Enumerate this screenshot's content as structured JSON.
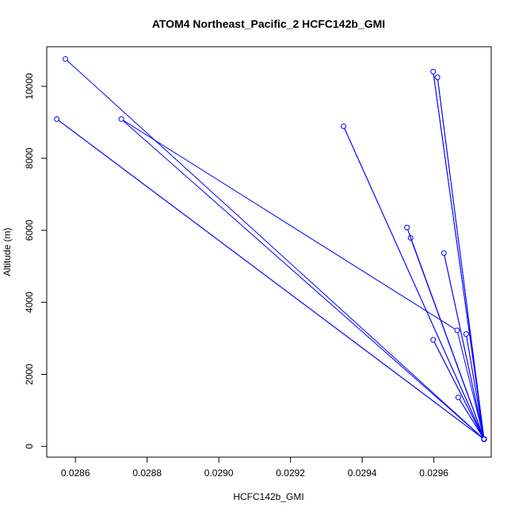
{
  "chart_data": {
    "type": "line",
    "title": "ATOM4 Northeast_Pacific_2 HCFC142b_GMI",
    "xlabel": "HCFC142b_GMI",
    "ylabel": "Altitude (m)",
    "xlim": [
      0.02852,
      0.02976
    ],
    "ylim": [
      -300,
      11100
    ],
    "x_ticks": [
      0.0286,
      0.0288,
      0.029,
      0.0292,
      0.0294,
      0.0296
    ],
    "x_tick_labels": [
      "0.0286",
      "0.0288",
      "0.0290",
      "0.0292",
      "0.0294",
      "0.0296"
    ],
    "y_ticks": [
      0,
      2000,
      4000,
      6000,
      8000,
      10000
    ],
    "y_tick_labels": [
      "0",
      "2000",
      "4000",
      "6000",
      "8000",
      "10000"
    ],
    "color": "#0000ff",
    "marker": "open-circle",
    "series": [
      {
        "points": [
          {
            "x": 0.028572,
            "y": 10760
          },
          {
            "x": 0.02974,
            "y": 200
          },
          {
            "x": 0.028548,
            "y": 9090
          },
          {
            "x": 0.02974,
            "y": 200
          },
          {
            "x": 0.029598,
            "y": 10410
          },
          {
            "x": 0.02974,
            "y": 200
          },
          {
            "x": 0.02961,
            "y": 10250
          },
          {
            "x": 0.02974,
            "y": 200
          },
          {
            "x": 0.029348,
            "y": 8890
          },
          {
            "x": 0.02974,
            "y": 200
          },
          {
            "x": 0.028728,
            "y": 9090
          },
          {
            "x": 0.029665,
            "y": 3220
          },
          {
            "x": 0.02974,
            "y": 200
          },
          {
            "x": 0.029525,
            "y": 6080
          },
          {
            "x": 0.02974,
            "y": 200
          },
          {
            "x": 0.029535,
            "y": 5790
          },
          {
            "x": 0.02974,
            "y": 200
          },
          {
            "x": 0.029628,
            "y": 5370
          },
          {
            "x": 0.02974,
            "y": 200
          },
          {
            "x": 0.02969,
            "y": 3120
          },
          {
            "x": 0.02974,
            "y": 200
          },
          {
            "x": 0.029598,
            "y": 2960
          },
          {
            "x": 0.02974,
            "y": 200
          },
          {
            "x": 0.029668,
            "y": 1360
          },
          {
            "x": 0.02974,
            "y": 200
          }
        ]
      }
    ],
    "grid": false,
    "legend": "none"
  }
}
